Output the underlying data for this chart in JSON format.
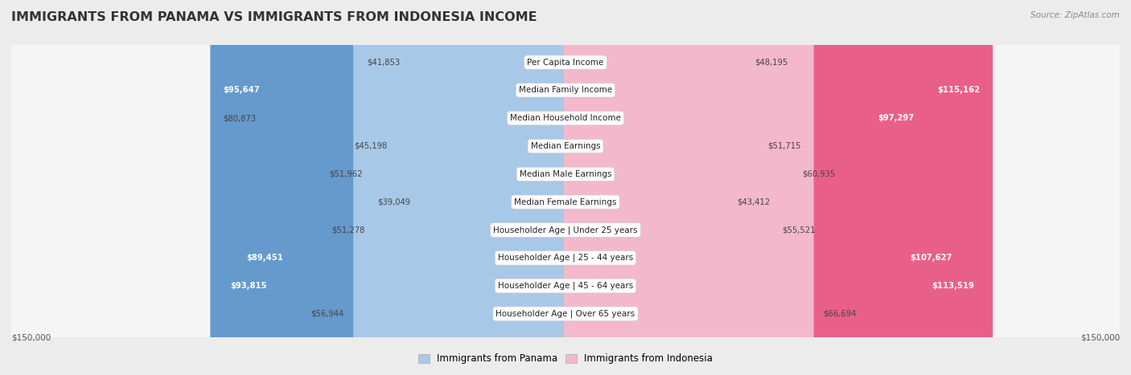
{
  "title": "IMMIGRANTS FROM PANAMA VS IMMIGRANTS FROM INDONESIA INCOME",
  "source": "Source: ZipAtlas.com",
  "categories": [
    "Per Capita Income",
    "Median Family Income",
    "Median Household Income",
    "Median Earnings",
    "Median Male Earnings",
    "Median Female Earnings",
    "Householder Age | Under 25 years",
    "Householder Age | 25 - 44 years",
    "Householder Age | 45 - 64 years",
    "Householder Age | Over 65 years"
  ],
  "panama_values": [
    41853,
    95647,
    80873,
    45198,
    51962,
    39049,
    51278,
    89451,
    93815,
    56944
  ],
  "indonesia_values": [
    48195,
    115162,
    97297,
    51715,
    60935,
    43412,
    55521,
    107627,
    113519,
    66694
  ],
  "panama_labels": [
    "$41,853",
    "$95,647",
    "$80,873",
    "$45,198",
    "$51,962",
    "$39,049",
    "$51,278",
    "$89,451",
    "$93,815",
    "$56,944"
  ],
  "indonesia_labels": [
    "$48,195",
    "$115,162",
    "$97,297",
    "$51,715",
    "$60,935",
    "$43,412",
    "$55,521",
    "$107,627",
    "$113,519",
    "$66,694"
  ],
  "panama_color_light": "#a8c8e8",
  "panama_color_dark": "#6699cc",
  "indonesia_color_light": "#f4b8cc",
  "indonesia_color_dark": "#e8608a",
  "inside_label_threshold": 0.55,
  "max_value": 150000,
  "background_color": "#ececec",
  "row_bg_color": "#f5f5f5",
  "row_border_color": "#dddddd"
}
